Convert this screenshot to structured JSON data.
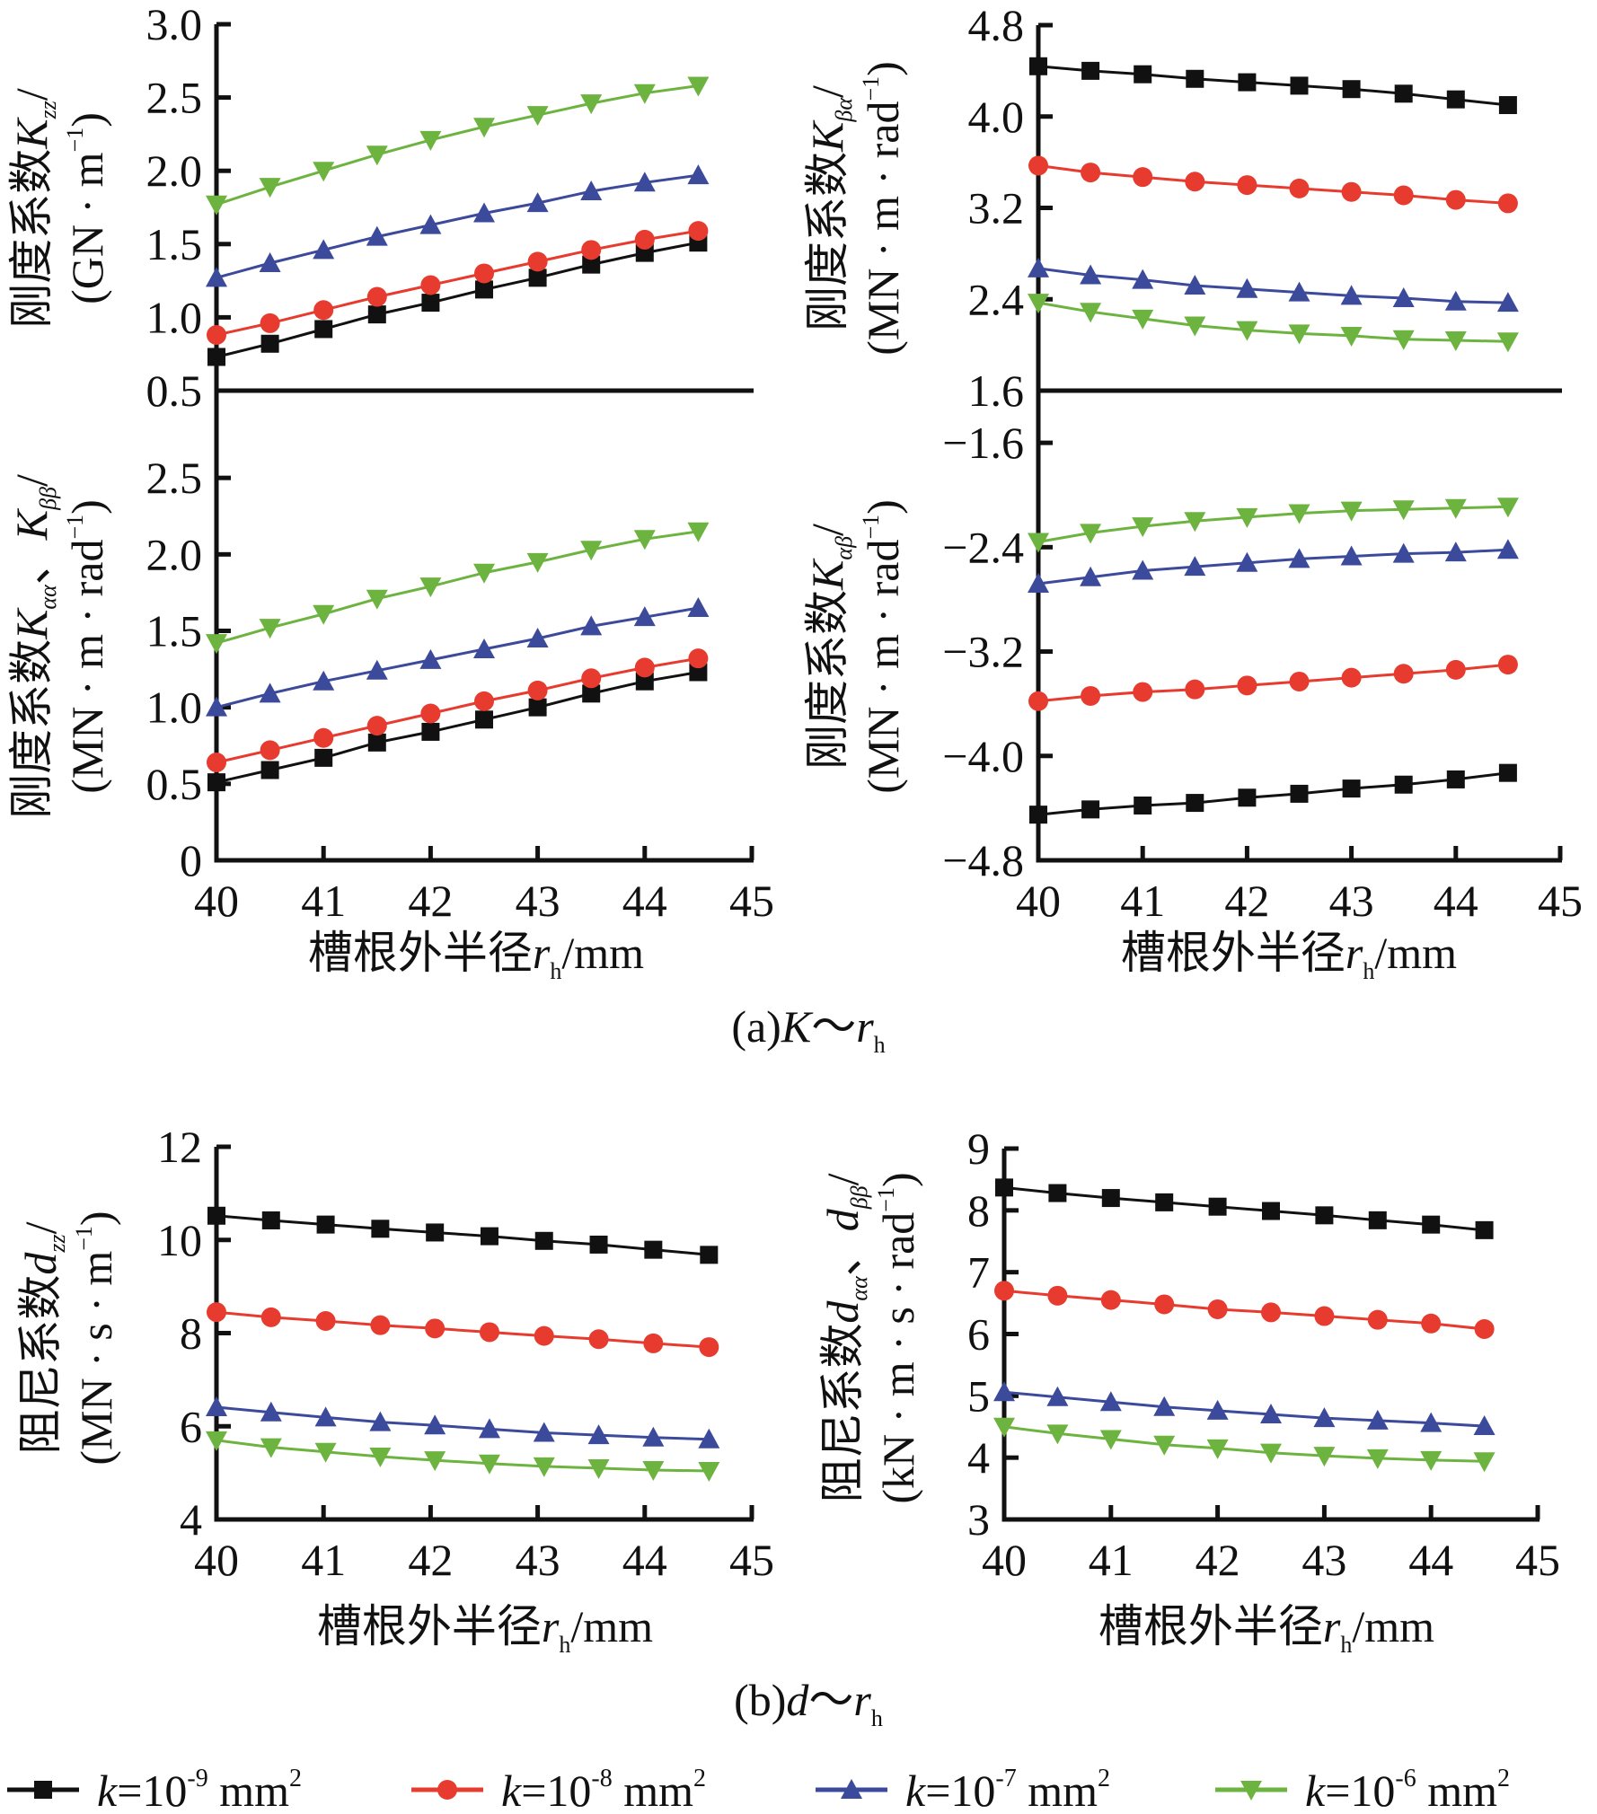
{
  "figure": {
    "caption_a": {
      "prefix": "(a)",
      "var": "K",
      "sep": "～",
      "r": "r",
      "sub": "h"
    },
    "caption_b": {
      "prefix": "(b)",
      "var": "d",
      "sep": "～",
      "r": "r",
      "sub": "h"
    }
  },
  "legend": [
    {
      "name": "k=10^-9 mm^2",
      "k": "k",
      "eq": "=",
      "base": "10",
      "exp": "-9",
      "unit": "mm",
      "unit_exp": "2",
      "color": "#111111",
      "marker": "square"
    },
    {
      "name": "k=10^-8 mm^2",
      "k": "k",
      "eq": "=",
      "base": "10",
      "exp": "-8",
      "unit": "mm",
      "unit_exp": "2",
      "color": "#e63b2e",
      "marker": "circle"
    },
    {
      "name": "k=10^-7 mm^2",
      "k": "k",
      "eq": "=",
      "base": "10",
      "exp": "-7",
      "unit": "mm",
      "unit_exp": "2",
      "color": "#3c4a9c",
      "marker": "triangle-up"
    },
    {
      "name": "k=10^-6 mm^2",
      "k": "k",
      "eq": "=",
      "base": "10",
      "exp": "-6",
      "unit": "mm",
      "unit_exp": "2",
      "color": "#6db33f",
      "marker": "triangle-down"
    }
  ],
  "chart_data": [
    {
      "id": "Kzz",
      "type": "line",
      "title": "",
      "xlabel": "槽根外半径r_h/mm",
      "ylabel": "刚度系数K_zz/(GN·m^-1)",
      "ylabel_lines": [
        "刚度系数K",
        "zz",
        "/",
        "(GN · m",
        "-1",
        ")"
      ],
      "xlim": [
        40,
        45
      ],
      "ylim": [
        0.5,
        3.0
      ],
      "xticks": [
        "40",
        "41",
        "42",
        "43",
        "44",
        "45"
      ],
      "yticks": [
        "0.5",
        "1.0",
        "1.5",
        "2.0",
        "2.5",
        "3.0"
      ],
      "x": [
        40,
        40.5,
        41,
        41.5,
        42,
        42.5,
        43,
        43.5,
        44,
        44.5
      ],
      "series": [
        {
          "name": "k=10^-9 mm^2",
          "values": [
            0.73,
            0.82,
            0.92,
            1.02,
            1.1,
            1.19,
            1.27,
            1.36,
            1.44,
            1.51
          ]
        },
        {
          "name": "k=10^-8 mm^2",
          "values": [
            0.88,
            0.96,
            1.05,
            1.14,
            1.22,
            1.3,
            1.38,
            1.46,
            1.53,
            1.59
          ]
        },
        {
          "name": "k=10^-7 mm^2",
          "values": [
            1.27,
            1.37,
            1.46,
            1.55,
            1.63,
            1.71,
            1.78,
            1.86,
            1.92,
            1.97
          ]
        },
        {
          "name": "k=10^-6 mm^2",
          "values": [
            1.77,
            1.89,
            2.0,
            2.11,
            2.21,
            2.3,
            2.38,
            2.46,
            2.53,
            2.58
          ]
        }
      ]
    },
    {
      "id": "Kaa_Kbb",
      "type": "line",
      "title": "",
      "xlabel": "槽根外半径r_h/mm",
      "ylabel": "刚度系数K_αα、K_ββ/(MN·m·rad^-1)",
      "xlim": [
        40,
        45
      ],
      "ylim": [
        0,
        3.0
      ],
      "xticks": [
        "40",
        "41",
        "42",
        "43",
        "44",
        "45"
      ],
      "yticks": [
        "0",
        "0.5",
        "1.0",
        "1.5",
        "2.0",
        "2.5"
      ],
      "x": [
        40,
        40.5,
        41,
        41.5,
        42,
        42.5,
        43,
        43.5,
        44,
        44.5
      ],
      "series": [
        {
          "name": "k=10^-9 mm^2",
          "values": [
            0.51,
            0.59,
            0.67,
            0.77,
            0.84,
            0.92,
            1.0,
            1.09,
            1.17,
            1.23
          ]
        },
        {
          "name": "k=10^-8 mm^2",
          "values": [
            0.64,
            0.72,
            0.8,
            0.88,
            0.96,
            1.04,
            1.11,
            1.19,
            1.26,
            1.32
          ]
        },
        {
          "name": "k=10^-7 mm^2",
          "values": [
            1.0,
            1.09,
            1.17,
            1.24,
            1.31,
            1.38,
            1.45,
            1.53,
            1.59,
            1.65
          ]
        },
        {
          "name": "k=10^-6 mm^2",
          "values": [
            1.42,
            1.52,
            1.61,
            1.71,
            1.79,
            1.88,
            1.95,
            2.03,
            2.1,
            2.15
          ]
        }
      ]
    },
    {
      "id": "Kba",
      "type": "line",
      "title": "",
      "xlabel": "",
      "ylabel": "刚度系数K_βα/(MN·m·rad^-1)",
      "xlim": [
        40,
        45
      ],
      "ylim": [
        1.6,
        4.8
      ],
      "xticks": [],
      "yticks": [
        "1.6",
        "2.4",
        "3.2",
        "4.0",
        "4.8"
      ],
      "x": [
        40,
        40.5,
        41,
        41.5,
        42,
        42.5,
        43,
        43.5,
        44,
        44.5
      ],
      "series": [
        {
          "name": "k=10^-9 mm^2",
          "values": [
            4.44,
            4.4,
            4.37,
            4.33,
            4.3,
            4.27,
            4.24,
            4.2,
            4.15,
            4.1
          ]
        },
        {
          "name": "k=10^-8 mm^2",
          "values": [
            3.57,
            3.51,
            3.47,
            3.43,
            3.4,
            3.37,
            3.34,
            3.31,
            3.27,
            3.24
          ]
        },
        {
          "name": "k=10^-7 mm^2",
          "values": [
            2.67,
            2.61,
            2.57,
            2.52,
            2.49,
            2.46,
            2.43,
            2.41,
            2.38,
            2.37
          ]
        },
        {
          "name": "k=10^-6 mm^2",
          "values": [
            2.37,
            2.29,
            2.23,
            2.17,
            2.13,
            2.1,
            2.08,
            2.05,
            2.04,
            2.03
          ]
        }
      ]
    },
    {
      "id": "Kab",
      "type": "line",
      "title": "",
      "xlabel": "槽根外半径r_h/mm",
      "ylabel": "刚度系数K_αβ/(MN·m·rad^-1)",
      "xlim": [
        40,
        45
      ],
      "ylim": [
        -4.8,
        -1.2
      ],
      "xticks": [
        "40",
        "41",
        "42",
        "43",
        "44",
        "45"
      ],
      "yticks": [
        "-4.8",
        "-4.0",
        "-3.2",
        "-2.4",
        "-1.6"
      ],
      "x": [
        40,
        40.5,
        41,
        41.5,
        42,
        42.5,
        43,
        43.5,
        44,
        44.5
      ],
      "series": [
        {
          "name": "k=10^-9 mm^2",
          "values": [
            -4.45,
            -4.41,
            -4.38,
            -4.36,
            -4.32,
            -4.29,
            -4.25,
            -4.22,
            -4.18,
            -4.13
          ]
        },
        {
          "name": "k=10^-8 mm^2",
          "values": [
            -3.58,
            -3.54,
            -3.51,
            -3.49,
            -3.46,
            -3.43,
            -3.4,
            -3.37,
            -3.34,
            -3.3
          ]
        },
        {
          "name": "k=10^-7 mm^2",
          "values": [
            -2.68,
            -2.63,
            -2.58,
            -2.55,
            -2.52,
            -2.49,
            -2.47,
            -2.45,
            -2.44,
            -2.42
          ]
        },
        {
          "name": "k=10^-6 mm^2",
          "values": [
            -2.36,
            -2.29,
            -2.24,
            -2.2,
            -2.17,
            -2.14,
            -2.12,
            -2.11,
            -2.1,
            -2.09
          ]
        }
      ]
    },
    {
      "id": "dzz",
      "type": "line",
      "title": "",
      "xlabel": "槽根外半径r_h/mm",
      "ylabel": "阻尼系数d_zz/(MN·s·m^-1)",
      "xlim": [
        40,
        45
      ],
      "ylim": [
        4,
        12
      ],
      "xticks": [
        "40",
        "41",
        "42",
        "43",
        "44",
        "45"
      ],
      "yticks": [
        "4",
        "6",
        "8",
        "10",
        "12"
      ],
      "x": [
        40,
        40.51,
        41.02,
        41.53,
        42.04,
        42.55,
        43.06,
        43.57,
        44.08,
        44.6
      ],
      "series": [
        {
          "name": "k=10^-9 mm^2",
          "values": [
            10.52,
            10.42,
            10.33,
            10.24,
            10.16,
            10.08,
            9.98,
            9.9,
            9.79,
            9.68
          ]
        },
        {
          "name": "k=10^-8 mm^2",
          "values": [
            8.45,
            8.34,
            8.26,
            8.17,
            8.1,
            8.02,
            7.94,
            7.87,
            7.78,
            7.7
          ]
        },
        {
          "name": "k=10^-7 mm^2",
          "values": [
            6.41,
            6.3,
            6.19,
            6.09,
            6.02,
            5.94,
            5.86,
            5.81,
            5.76,
            5.72
          ]
        },
        {
          "name": "k=10^-6 mm^2",
          "values": [
            5.7,
            5.55,
            5.45,
            5.35,
            5.27,
            5.2,
            5.14,
            5.1,
            5.06,
            5.04
          ]
        }
      ]
    },
    {
      "id": "daa_dbb",
      "type": "line",
      "title": "",
      "xlabel": "槽根外半径r_h/mm",
      "ylabel": "阻尼系数d_αα、d_ββ/(kN·m·s·rad^-1)",
      "xlim": [
        40,
        45
      ],
      "ylim": [
        3,
        9
      ],
      "xticks": [
        "40",
        "41",
        "42",
        "43",
        "44",
        "45"
      ],
      "yticks": [
        "3",
        "4",
        "5",
        "6",
        "7",
        "8",
        "9"
      ],
      "x": [
        40,
        40.5,
        41,
        41.5,
        42,
        42.5,
        43,
        43.5,
        44,
        44.5
      ],
      "series": [
        {
          "name": "k=10^-9 mm^2",
          "values": [
            8.37,
            8.28,
            8.2,
            8.13,
            8.06,
            7.99,
            7.92,
            7.84,
            7.77,
            7.68
          ]
        },
        {
          "name": "k=10^-8 mm^2",
          "values": [
            6.7,
            6.62,
            6.55,
            6.48,
            6.4,
            6.35,
            6.29,
            6.23,
            6.17,
            6.08
          ]
        },
        {
          "name": "k=10^-7 mm^2",
          "values": [
            5.06,
            4.98,
            4.9,
            4.82,
            4.76,
            4.7,
            4.64,
            4.6,
            4.56,
            4.51
          ]
        },
        {
          "name": "k=10^-6 mm^2",
          "values": [
            4.5,
            4.39,
            4.3,
            4.21,
            4.15,
            4.08,
            4.03,
            3.99,
            3.96,
            3.94
          ]
        }
      ]
    }
  ],
  "axis_titles": {
    "x_prefix": "槽根外半径",
    "x_var": "r",
    "x_sub": "h",
    "x_unit": "/mm",
    "Kzz": {
      "line1_text": "刚度系数",
      "line1_var": "K",
      "line1_sub": "zz",
      "line1_end": "/",
      "line2": "(GN · m",
      "line2_sup": "−1",
      "line2_end": ")"
    },
    "Kaa": {
      "line1_text": "刚度系数",
      "line1_var": "K",
      "line1_sub": "αα",
      "line1_mid": "、",
      "line1_var2": "K",
      "line1_sub2": "ββ",
      "line1_end": "/",
      "line2": "(MN · m · rad",
      "line2_sup": "−1",
      "line2_end": ")"
    },
    "Kba": {
      "line1_text": "刚度系数",
      "line1_var": "K",
      "line1_sub": "βα",
      "line1_end": "/",
      "line2": "(MN · m · rad",
      "line2_sup": "−1",
      "line2_end": ")"
    },
    "Kab": {
      "line1_text": "刚度系数",
      "line1_var": "K",
      "line1_sub": "αβ",
      "line1_end": "/",
      "line2": "(MN · m · rad",
      "line2_sup": "−1",
      "line2_end": ")"
    },
    "dzz": {
      "line1_text": "阻尼系数",
      "line1_var": "d",
      "line1_sub": "zz",
      "line1_end": "/",
      "line2": "(MN · s · m",
      "line2_sup": "−1",
      "line2_end": ")"
    },
    "daa": {
      "line1_text": "阻尼系数",
      "line1_var": "d",
      "line1_sub": "αα",
      "line1_mid": "、",
      "line1_var2": "d",
      "line1_sub2": "ββ",
      "line1_end": "/",
      "line2": "(kN · m · s · rad",
      "line2_sup": "−1",
      "line2_end": ")"
    }
  }
}
